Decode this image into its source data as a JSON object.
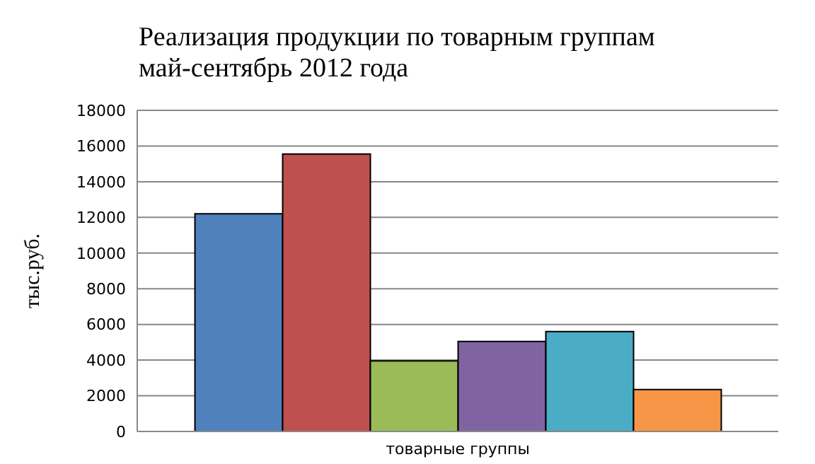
{
  "chart_data": {
    "type": "bar",
    "title": "Реализация продукции по товарным группам\nмай-сентябрь 2012 года",
    "ylabel": "тыс.руб.",
    "categories": [
      "товарные группы"
    ],
    "series": [
      {
        "color": "#4f81bd",
        "values": [
          12200
        ]
      },
      {
        "color": "#c0504d",
        "values": [
          15550
        ]
      },
      {
        "color": "#9bbb59",
        "values": [
          3950
        ]
      },
      {
        "color": "#8064a2",
        "values": [
          5050
        ]
      },
      {
        "color": "#4bacc6",
        "values": [
          5600
        ]
      },
      {
        "color": "#f79646",
        "values": [
          2350
        ]
      }
    ],
    "ylim": [
      0,
      18000
    ],
    "yticks": [
      0,
      2000,
      4000,
      6000,
      8000,
      10000,
      12000,
      14000,
      16000,
      18000
    ],
    "grid": "y",
    "legend": false
  }
}
